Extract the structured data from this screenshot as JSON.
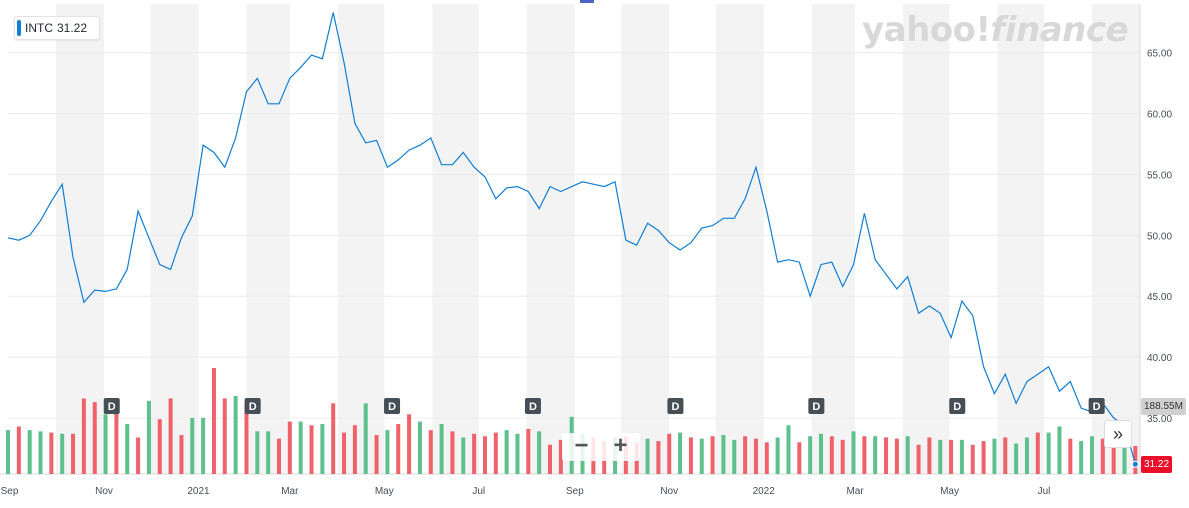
{
  "ticker_badge": {
    "symbol": "INTC",
    "price": "31.22"
  },
  "logo": {
    "brand": "yahoo!",
    "product": "finance"
  },
  "volume_badge": "188.55M",
  "price_badge": "31.22",
  "zoom": {
    "minus": "−",
    "plus": "+"
  },
  "scroll_label": "»",
  "dividend_marker": "D",
  "colors": {
    "line": "#0f7ed6",
    "up": "#5ec08c",
    "down": "#f0626a",
    "shade": "#f3f3f3",
    "grid": "#ececec"
  },
  "chart_data": {
    "type": "line",
    "series": [
      {
        "name": "INTC",
        "x": [
          "2020-08-31",
          "2020-09-07",
          "2020-09-14",
          "2020-09-21",
          "2020-09-28",
          "2020-10-05",
          "2020-10-12",
          "2020-10-19",
          "2020-10-26",
          "2020-11-02",
          "2020-11-09",
          "2020-11-16",
          "2020-11-23",
          "2020-11-30",
          "2020-12-07",
          "2020-12-14",
          "2020-12-21",
          "2020-12-28",
          "2021-01-04",
          "2021-01-11",
          "2021-01-18",
          "2021-01-25",
          "2021-02-01",
          "2021-02-08",
          "2021-02-15",
          "2021-02-22",
          "2021-03-01",
          "2021-03-08",
          "2021-03-15",
          "2021-03-22",
          "2021-03-29",
          "2021-04-05",
          "2021-04-12",
          "2021-04-19",
          "2021-04-26",
          "2021-05-03",
          "2021-05-10",
          "2021-05-17",
          "2021-05-24",
          "2021-05-31",
          "2021-06-07",
          "2021-06-14",
          "2021-06-21",
          "2021-06-28",
          "2021-07-05",
          "2021-07-12",
          "2021-07-19",
          "2021-07-26",
          "2021-08-02",
          "2021-08-09",
          "2021-08-16",
          "2021-08-23",
          "2021-08-30",
          "2021-09-06",
          "2021-09-13",
          "2021-09-20",
          "2021-09-27",
          "2021-10-04",
          "2021-10-11",
          "2021-10-18",
          "2021-10-25",
          "2021-11-01",
          "2021-11-08",
          "2021-11-15",
          "2021-11-22",
          "2021-11-29",
          "2021-12-06",
          "2021-12-13",
          "2021-12-20",
          "2021-12-27",
          "2022-01-03",
          "2022-01-10",
          "2022-01-17",
          "2022-01-24",
          "2022-01-31",
          "2022-02-07",
          "2022-02-14",
          "2022-02-21",
          "2022-02-28",
          "2022-03-07",
          "2022-03-14",
          "2022-03-21",
          "2022-03-28",
          "2022-04-04",
          "2022-04-11",
          "2022-04-18",
          "2022-04-25",
          "2022-05-02",
          "2022-05-09",
          "2022-05-16",
          "2022-05-23",
          "2022-05-30",
          "2022-06-06",
          "2022-06-13",
          "2022-06-20",
          "2022-06-27",
          "2022-07-04",
          "2022-07-11",
          "2022-07-18",
          "2022-07-25",
          "2022-08-01",
          "2022-08-08",
          "2022-08-15",
          "2022-08-22",
          "2022-08-29"
        ],
        "values": [
          49.8,
          49.6,
          50.0,
          51.2,
          52.8,
          54.2,
          48.2,
          44.5,
          45.5,
          45.4,
          45.6,
          47.2,
          52.0,
          49.8,
          47.6,
          47.2,
          49.8,
          51.6,
          57.4,
          56.8,
          55.6,
          58.0,
          61.8,
          62.9,
          60.8,
          60.8,
          62.9,
          63.8,
          64.8,
          64.5,
          68.3,
          64.2,
          59.2,
          57.6,
          57.8,
          55.6,
          56.2,
          57.0,
          57.4,
          58.0,
          55.8,
          55.8,
          56.8,
          55.6,
          54.8,
          53.0,
          53.9,
          54.0,
          53.6,
          52.2,
          54.0,
          53.6,
          54.0,
          54.4,
          54.2,
          54.0,
          54.4,
          49.6,
          49.2,
          51.0,
          50.4,
          49.4,
          48.8,
          49.4,
          50.6,
          50.8,
          51.4,
          51.4,
          53.0,
          55.6,
          52.0,
          47.8,
          48.0,
          47.8,
          45.0,
          47.6,
          47.8,
          45.8,
          47.6,
          51.8,
          48.0,
          46.8,
          45.6,
          46.6,
          43.6,
          44.2,
          43.6,
          41.6,
          44.6,
          43.4,
          39.2,
          37.0,
          38.6,
          36.2,
          38.0,
          38.6,
          39.2,
          37.2,
          38.0,
          35.8,
          35.5,
          36.2,
          35.0,
          34.4,
          31.2
        ]
      }
    ],
    "volume": {
      "values": [
        36,
        39,
        36,
        35,
        34,
        33,
        33,
        62,
        59,
        49,
        51,
        41,
        30,
        60,
        45,
        62,
        32,
        46,
        46,
        87,
        62,
        64,
        59,
        35,
        35,
        29,
        43,
        43,
        40,
        41,
        58,
        34,
        40,
        58,
        32,
        36,
        41,
        49,
        43,
        36,
        41,
        35,
        30,
        33,
        31,
        34,
        36,
        33,
        37,
        35,
        24,
        28,
        47,
        33,
        30,
        27,
        30,
        31,
        26,
        29,
        27,
        33,
        34,
        30,
        29,
        31,
        32,
        28,
        31,
        29,
        26,
        30,
        40,
        26,
        31,
        33,
        31,
        28,
        35,
        31,
        31,
        30,
        29,
        31,
        24,
        30,
        28,
        28,
        28,
        24,
        27,
        29,
        30,
        25,
        30,
        34,
        34,
        39,
        29,
        27,
        31,
        29,
        25,
        33,
        23
      ],
      "up": [
        1,
        0,
        1,
        1,
        0,
        1,
        0,
        0,
        0,
        1,
        0,
        1,
        0,
        1,
        0,
        0,
        0,
        1,
        1,
        0,
        0,
        1,
        0,
        1,
        1,
        0,
        0,
        1,
        0,
        1,
        0,
        0,
        0,
        1,
        0,
        1,
        0,
        0,
        1,
        0,
        1,
        0,
        1,
        0,
        0,
        0,
        1,
        1,
        0,
        1,
        0,
        0,
        1,
        1,
        0,
        0,
        1,
        0,
        0,
        1,
        0,
        0,
        1,
        0,
        1,
        0,
        1,
        1,
        0,
        0,
        0,
        1,
        1,
        0,
        1,
        1,
        0,
        0,
        1,
        0,
        1,
        0,
        0,
        1,
        0,
        0,
        1,
        0,
        1,
        0,
        0,
        1,
        0,
        1,
        1,
        0,
        1,
        1,
        0,
        1,
        1,
        0,
        0,
        1,
        0
      ]
    },
    "dividends": [
      "2020-11-06",
      "2021-02-05",
      "2021-05-06",
      "2021-08-05",
      "2021-11-05",
      "2022-02-04",
      "2022-05-06",
      "2022-08-04"
    ],
    "x_ticks": [
      "Sep",
      "Nov",
      "2021",
      "Mar",
      "May",
      "Jul",
      "Sep",
      "Nov",
      "2022",
      "Mar",
      "May",
      "Jul"
    ],
    "y_ticks": [
      "35.00",
      "40.00",
      "45.00",
      "50.00",
      "55.00",
      "60.00",
      "65.00"
    ],
    "ylim": [
      30.4,
      69.0
    ],
    "grid": true,
    "legend": "top-left"
  }
}
